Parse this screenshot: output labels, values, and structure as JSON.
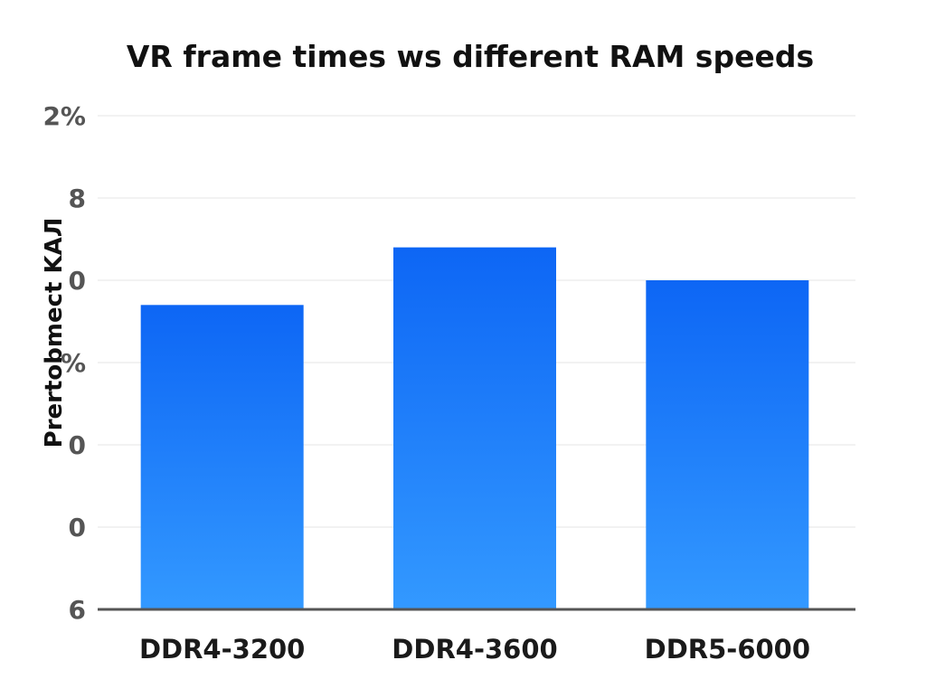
{
  "chart_data": {
    "type": "bar",
    "title": "VR frame times ws different RAM speeds",
    "ylabel": "Prertobmect KAЛ",
    "xlabel": "",
    "y_tick_labels": [
      "6",
      "0",
      "0",
      "%",
      "0",
      "8",
      "2%"
    ],
    "categories": [
      "DDR4-3200",
      "DDR4-3600",
      "DDR5-6000"
    ],
    "values": [
      3.7,
      4.4,
      4.0
    ],
    "ylim": [
      0,
      6
    ],
    "grid": true,
    "legend": "none",
    "colors": {
      "bar_top": "#0d66f5",
      "bar_bottom": "#3399ff",
      "grid": "#e6e6e6",
      "axis": "#555555",
      "tick_text": "#555555",
      "category_text": "#1a1a1a",
      "title_text": "#111111"
    }
  }
}
